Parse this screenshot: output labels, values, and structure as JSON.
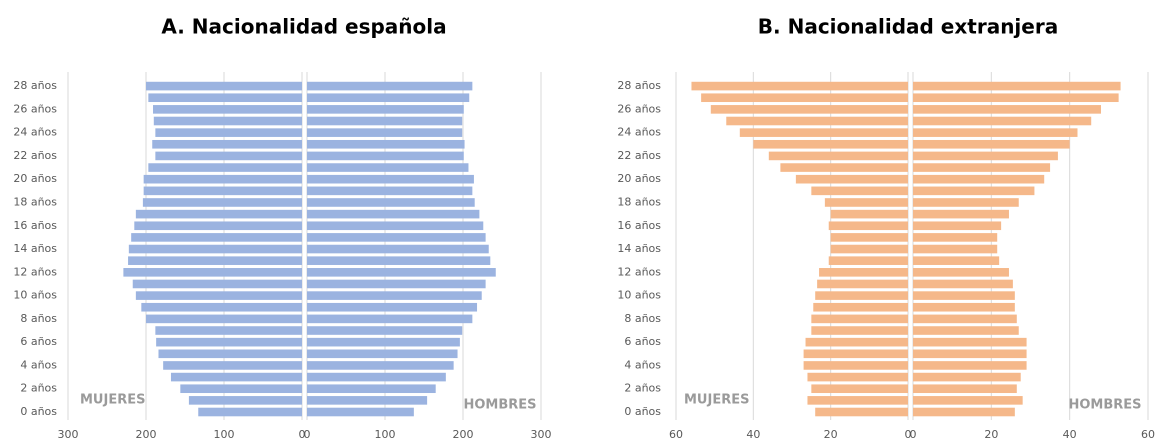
{
  "chart_data": [
    {
      "type": "pyramid",
      "title": "A. Nacionalidad española",
      "categories": [
        "0 años",
        null,
        "2 años",
        null,
        "4 años",
        null,
        "6 años",
        null,
        "8 años",
        null,
        "10 años",
        null,
        "12 años",
        null,
        "14 años",
        null,
        "16 años",
        null,
        "18 años",
        null,
        "20 años",
        null,
        "22 años",
        null,
        "24 años",
        null,
        "26 años",
        null,
        "28 años"
      ],
      "series": [
        {
          "name": "MUJERES",
          "color": "#9bb3e0",
          "values": [
            133,
            145,
            156,
            168,
            178,
            184,
            187,
            188,
            200,
            206,
            213,
            217,
            229,
            223,
            222,
            219,
            215,
            213,
            204,
            203,
            203,
            197,
            188,
            192,
            188,
            190,
            191,
            197,
            200
          ]
        },
        {
          "name": "HOMBRES",
          "color": "#9bb3e0",
          "values": [
            137,
            154,
            165,
            178,
            188,
            193,
            196,
            199,
            212,
            218,
            224,
            229,
            242,
            235,
            233,
            229,
            226,
            221,
            215,
            212,
            214,
            207,
            201,
            202,
            199,
            199,
            201,
            208,
            212
          ]
        }
      ],
      "xlim": [
        0,
        300
      ],
      "xticks": [
        0,
        100,
        200,
        300
      ],
      "grid": true
    },
    {
      "type": "pyramid",
      "title": "B. Nacionalidad extranjera",
      "categories": [
        "0 años",
        null,
        "2 años",
        null,
        "4 años",
        null,
        "6 años",
        null,
        "8 años",
        null,
        "10 años",
        null,
        "12 años",
        null,
        "14 años",
        null,
        "16 años",
        null,
        "18 años",
        null,
        "20 años",
        null,
        "22 años",
        null,
        "24 años",
        null,
        "26 años",
        null,
        "28 años"
      ],
      "series": [
        {
          "name": "MUJERES",
          "color": "#f5b88a",
          "values": [
            24,
            26,
            25,
            26,
            27,
            27,
            26.5,
            25,
            25,
            24.5,
            24,
            23.5,
            23,
            20.5,
            20,
            20,
            20.5,
            20,
            21.5,
            25,
            29,
            33,
            36,
            40,
            43.5,
            47,
            51,
            53.5,
            56
          ]
        },
        {
          "name": "HOMBRES",
          "color": "#f5b88a",
          "values": [
            26,
            28,
            26.5,
            27.5,
            29,
            29,
            29,
            27,
            26.5,
            26,
            26,
            25.5,
            24.5,
            22,
            21.5,
            21.5,
            22.5,
            24.5,
            27,
            31,
            33.5,
            35,
            37,
            40,
            42,
            45.5,
            48,
            52.5,
            53
          ]
        }
      ],
      "xlim": [
        0,
        60
      ],
      "xticks": [
        0,
        20,
        40,
        60
      ],
      "grid": true
    }
  ]
}
